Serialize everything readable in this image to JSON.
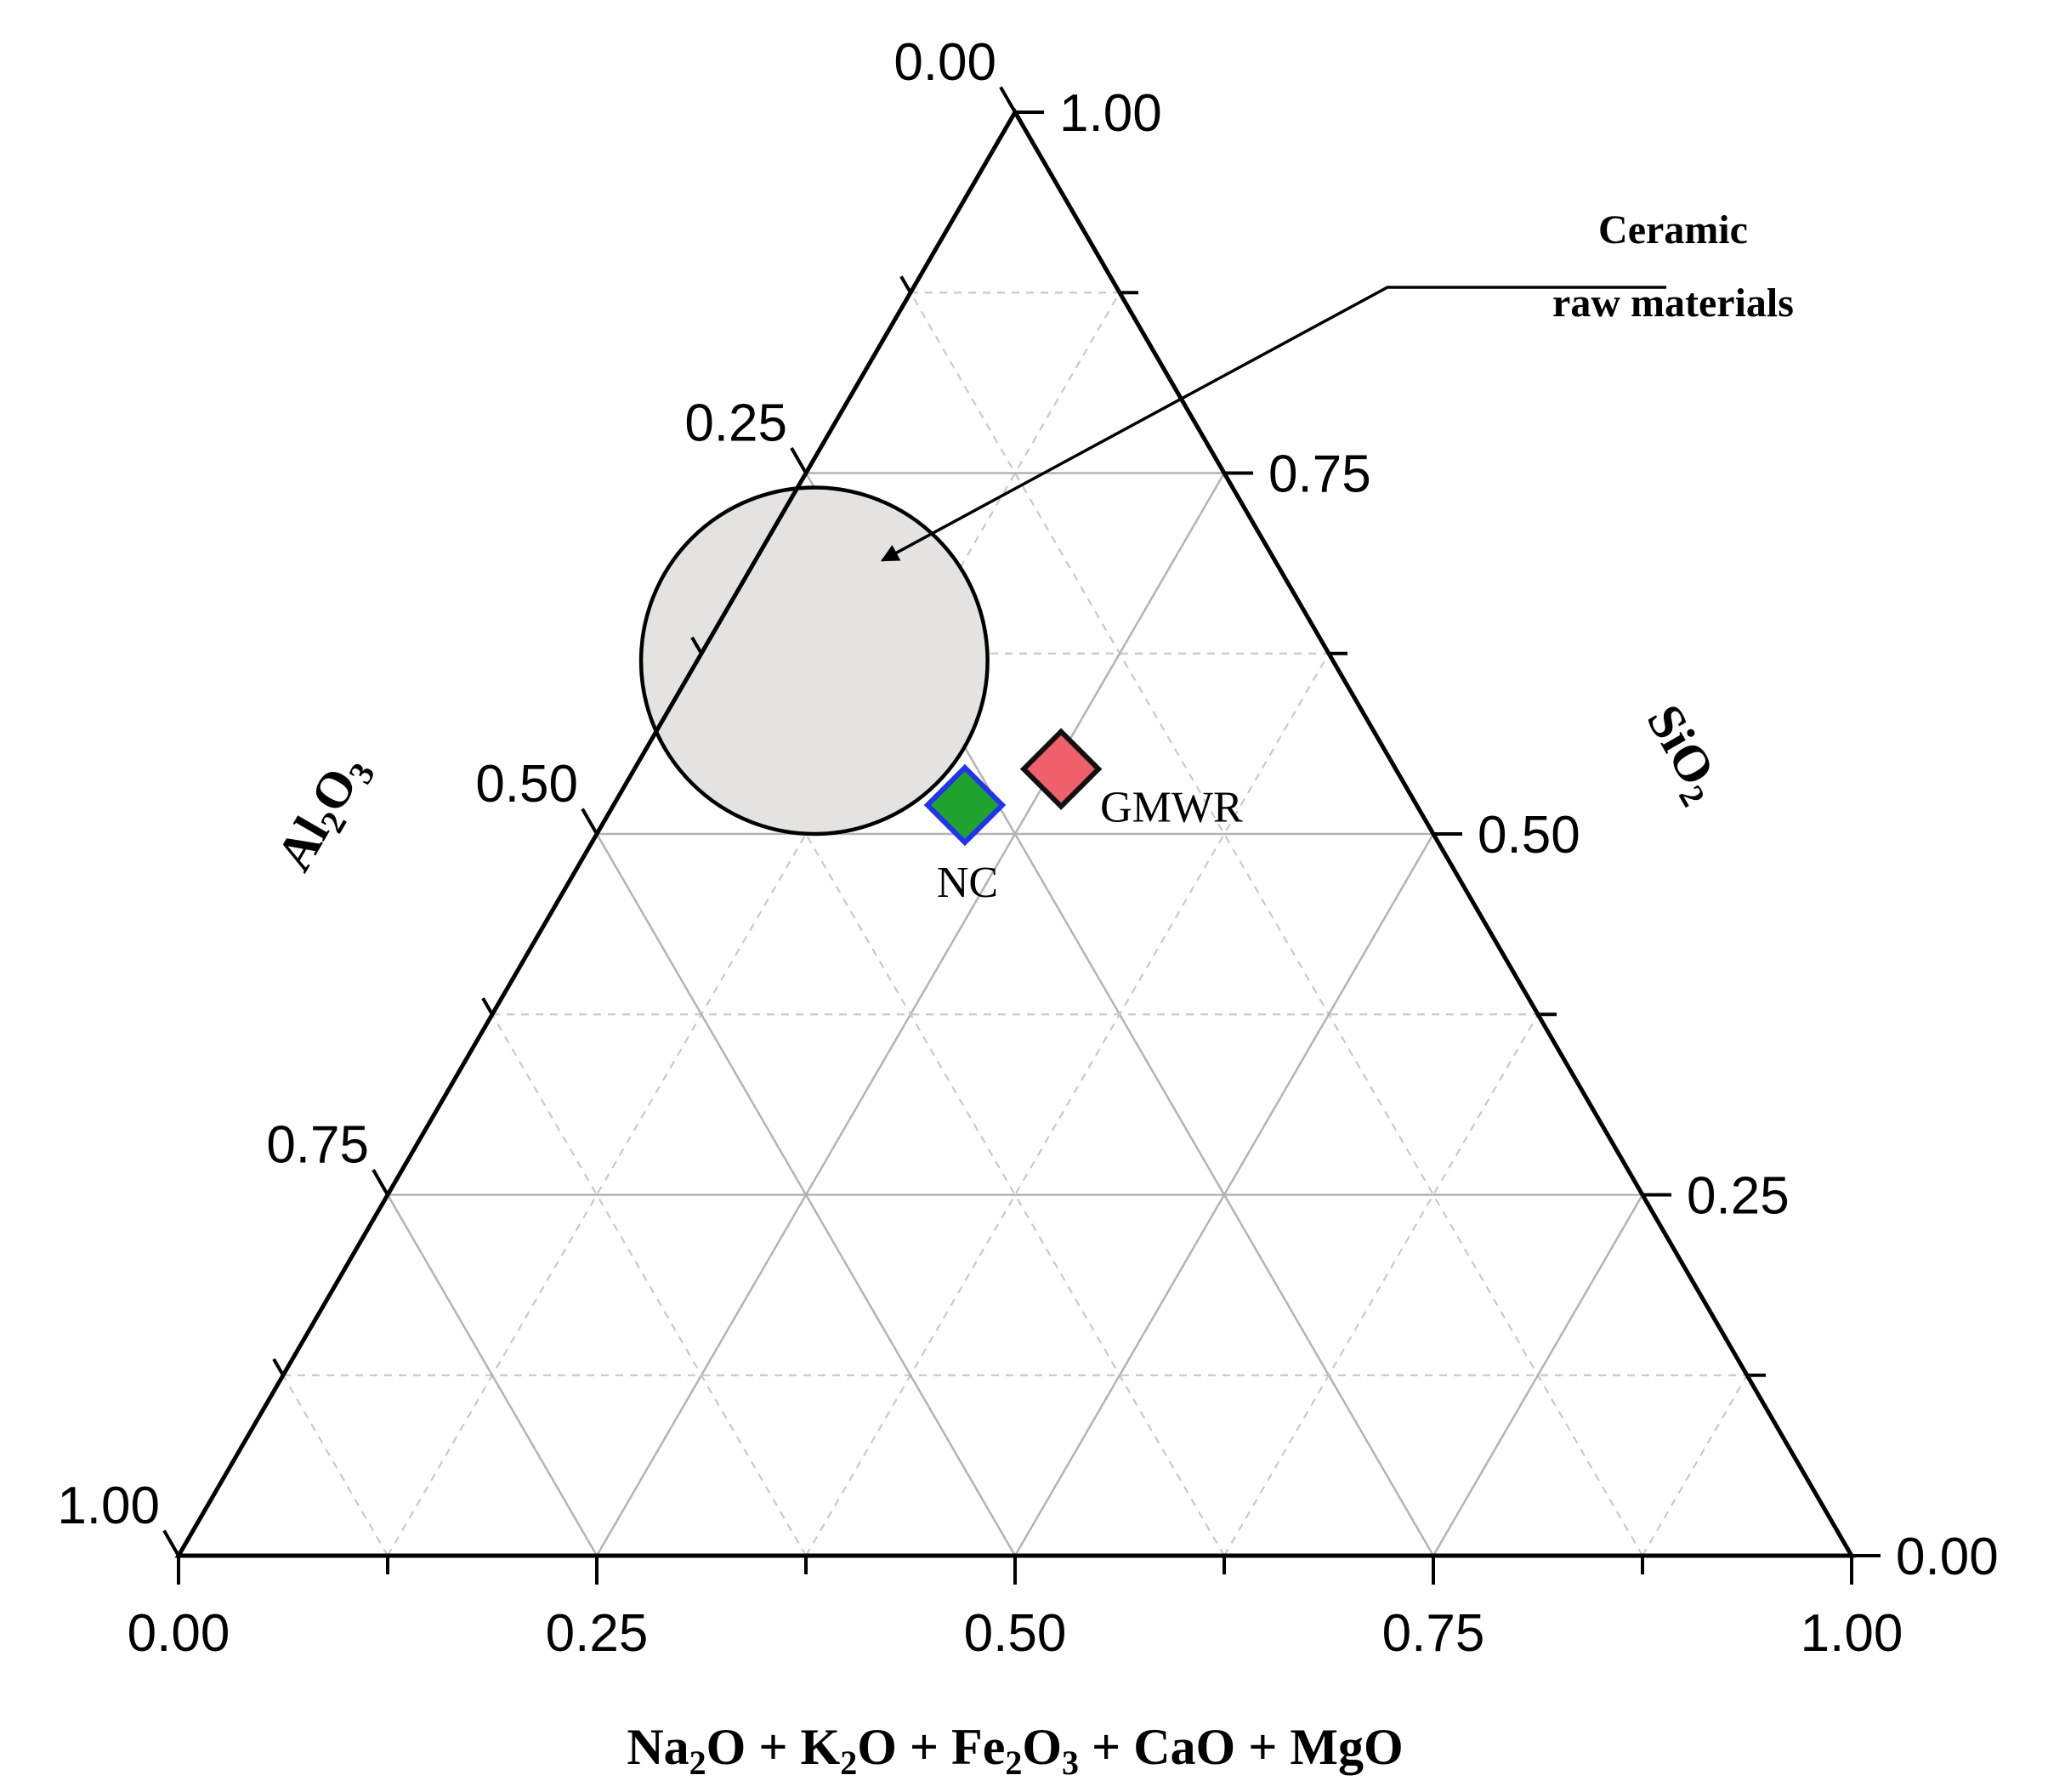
{
  "chart_data": {
    "type": "scatter",
    "subtype": "ternary",
    "axes": {
      "bottom": {
        "label_parts": [
          {
            "t": "Na"
          },
          {
            "t": "2",
            "sub": true
          },
          {
            "t": "O + K"
          },
          {
            "t": "2",
            "sub": true
          },
          {
            "t": "O + Fe"
          },
          {
            "t": "2",
            "sub": true
          },
          {
            "t": "O"
          },
          {
            "t": "3",
            "sub": true
          },
          {
            "t": " + CaO + MgO"
          }
        ],
        "ticks": [
          "0.00",
          "0.25",
          "0.50",
          "0.75",
          "1.00"
        ],
        "range": [
          0,
          1
        ]
      },
      "left": {
        "label_parts": [
          {
            "t": "Al"
          },
          {
            "t": "2",
            "sub": true
          },
          {
            "t": "O"
          },
          {
            "t": "3",
            "sub": true
          }
        ],
        "ticks": [
          "0.00",
          "0.25",
          "0.50",
          "0.75",
          "1.00"
        ],
        "range": [
          0,
          1
        ]
      },
      "right": {
        "label_parts": [
          {
            "t": "SiO"
          },
          {
            "t": "2",
            "sub": true
          }
        ],
        "ticks": [
          "0.00",
          "0.25",
          "0.50",
          "0.75",
          "1.00"
        ],
        "range": [
          0,
          1
        ]
      }
    },
    "grid": true,
    "region": {
      "name_lines": [
        "Ceramic",
        "raw materials"
      ],
      "center": {
        "SiO2": 0.62,
        "Al2O3": 0.31,
        "Fluxes": 0.07
      },
      "extent_SiO2": [
        0.5,
        0.74
      ],
      "fill": "#e4e3df"
    },
    "points": [
      {
        "label": "NC",
        "SiO2": 0.52,
        "Al2O3": 0.27,
        "Fluxes": 0.21,
        "fill": "#1fa32e",
        "edge": "#2233ee"
      },
      {
        "label": "GMWR",
        "SiO2": 0.545,
        "Al2O3": 0.2,
        "Fluxes": 0.255,
        "fill": "#f0606a",
        "edge": "#111111"
      }
    ]
  }
}
